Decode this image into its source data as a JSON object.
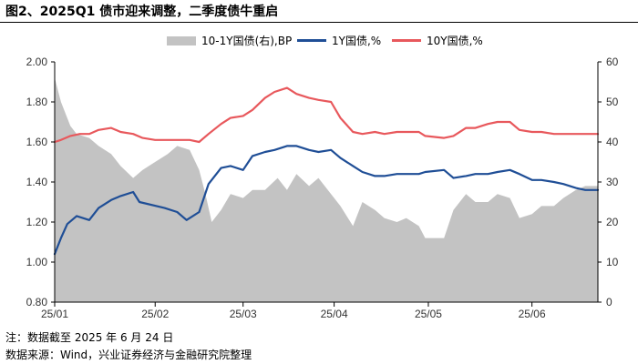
{
  "title": "图2、2025Q1 债市迎来调整，二季度债牛重启",
  "footer": {
    "note": "注：数据截至 2025 年 6 月 24 日",
    "source": "数据来源：Wind，兴业证券经济与金融研究院整理"
  },
  "chart_data": {
    "type": "line",
    "grid": false,
    "legend_position": "top",
    "x_tick_labels": [
      "25/01",
      "25/02",
      "25/03",
      "25/04",
      "25/05",
      "25/06"
    ],
    "x_tick_dates": [
      "2025-01-02",
      "2025-02-03",
      "2025-03-03",
      "2025-04-01",
      "2025-05-01",
      "2025-06-03"
    ],
    "x_range": [
      "2025-01-02",
      "2025-06-24"
    ],
    "y_left": {
      "range": [
        0.8,
        2.0
      ],
      "ticks": [
        "0.80",
        "1.00",
        "1.20",
        "1.40",
        "1.60",
        "1.80",
        "2.00"
      ]
    },
    "y_right": {
      "range": [
        0,
        60
      ],
      "ticks": [
        "0",
        "10",
        "20",
        "30",
        "40",
        "50",
        "60"
      ]
    },
    "series": [
      {
        "name": "10-1Y国债(右),BP",
        "axis": "right",
        "style": "area",
        "color": "#c3c3c3",
        "points": [
          [
            "2025-01-02",
            56
          ],
          [
            "2025-01-04",
            50
          ],
          [
            "2025-01-07",
            44
          ],
          [
            "2025-01-09",
            42
          ],
          [
            "2025-01-13",
            41
          ],
          [
            "2025-01-16",
            39
          ],
          [
            "2025-01-20",
            37
          ],
          [
            "2025-01-23",
            34
          ],
          [
            "2025-01-27",
            31
          ],
          [
            "2025-01-30",
            33
          ],
          [
            "2025-02-03",
            35
          ],
          [
            "2025-02-07",
            37
          ],
          [
            "2025-02-10",
            39
          ],
          [
            "2025-02-14",
            38
          ],
          [
            "2025-02-17",
            33
          ],
          [
            "2025-02-19",
            27
          ],
          [
            "2025-02-21",
            20
          ],
          [
            "2025-02-24",
            23
          ],
          [
            "2025-02-27",
            27
          ],
          [
            "2025-03-03",
            26
          ],
          [
            "2025-03-06",
            28
          ],
          [
            "2025-03-10",
            28
          ],
          [
            "2025-03-14",
            31
          ],
          [
            "2025-03-17",
            28
          ],
          [
            "2025-03-20",
            32
          ],
          [
            "2025-03-24",
            29
          ],
          [
            "2025-03-27",
            31
          ],
          [
            "2025-03-31",
            27
          ],
          [
            "2025-04-03",
            24
          ],
          [
            "2025-04-07",
            19
          ],
          [
            "2025-04-10",
            25
          ],
          [
            "2025-04-14",
            23
          ],
          [
            "2025-04-17",
            21
          ],
          [
            "2025-04-21",
            20
          ],
          [
            "2025-04-24",
            21
          ],
          [
            "2025-04-28",
            19
          ],
          [
            "2025-04-30",
            16
          ],
          [
            "2025-05-06",
            16
          ],
          [
            "2025-05-09",
            23
          ],
          [
            "2025-05-13",
            27
          ],
          [
            "2025-05-16",
            25
          ],
          [
            "2025-05-20",
            25
          ],
          [
            "2025-05-23",
            27
          ],
          [
            "2025-05-27",
            26
          ],
          [
            "2025-05-30",
            21
          ],
          [
            "2025-06-03",
            22
          ],
          [
            "2025-06-06",
            24
          ],
          [
            "2025-06-10",
            24
          ],
          [
            "2025-06-13",
            26
          ],
          [
            "2025-06-17",
            28
          ],
          [
            "2025-06-20",
            29
          ],
          [
            "2025-06-24",
            29
          ]
        ]
      },
      {
        "name": "1Y国债,%",
        "axis": "left",
        "style": "line",
        "color": "#1f4e96",
        "points": [
          [
            "2025-01-02",
            1.04
          ],
          [
            "2025-01-04",
            1.12
          ],
          [
            "2025-01-06",
            1.19
          ],
          [
            "2025-01-09",
            1.23
          ],
          [
            "2025-01-13",
            1.21
          ],
          [
            "2025-01-16",
            1.27
          ],
          [
            "2025-01-20",
            1.31
          ],
          [
            "2025-01-23",
            1.33
          ],
          [
            "2025-01-27",
            1.35
          ],
          [
            "2025-01-29",
            1.3
          ],
          [
            "2025-02-06",
            1.27
          ],
          [
            "2025-02-10",
            1.25
          ],
          [
            "2025-02-13",
            1.21
          ],
          [
            "2025-02-17",
            1.25
          ],
          [
            "2025-02-20",
            1.39
          ],
          [
            "2025-02-24",
            1.47
          ],
          [
            "2025-02-27",
            1.48
          ],
          [
            "2025-03-03",
            1.46
          ],
          [
            "2025-03-06",
            1.53
          ],
          [
            "2025-03-10",
            1.55
          ],
          [
            "2025-03-13",
            1.56
          ],
          [
            "2025-03-17",
            1.58
          ],
          [
            "2025-03-20",
            1.58
          ],
          [
            "2025-03-24",
            1.56
          ],
          [
            "2025-03-27",
            1.55
          ],
          [
            "2025-03-31",
            1.56
          ],
          [
            "2025-04-03",
            1.52
          ],
          [
            "2025-04-07",
            1.48
          ],
          [
            "2025-04-10",
            1.45
          ],
          [
            "2025-04-14",
            1.43
          ],
          [
            "2025-04-17",
            1.43
          ],
          [
            "2025-04-21",
            1.44
          ],
          [
            "2025-04-24",
            1.44
          ],
          [
            "2025-04-28",
            1.44
          ],
          [
            "2025-04-30",
            1.45
          ],
          [
            "2025-05-06",
            1.46
          ],
          [
            "2025-05-09",
            1.42
          ],
          [
            "2025-05-13",
            1.43
          ],
          [
            "2025-05-16",
            1.44
          ],
          [
            "2025-05-20",
            1.44
          ],
          [
            "2025-05-23",
            1.45
          ],
          [
            "2025-05-27",
            1.46
          ],
          [
            "2025-05-30",
            1.44
          ],
          [
            "2025-06-03",
            1.41
          ],
          [
            "2025-06-06",
            1.41
          ],
          [
            "2025-06-10",
            1.4
          ],
          [
            "2025-06-13",
            1.39
          ],
          [
            "2025-06-17",
            1.37
          ],
          [
            "2025-06-20",
            1.36
          ],
          [
            "2025-06-24",
            1.36
          ]
        ]
      },
      {
        "name": "10Y国债,%",
        "axis": "left",
        "style": "line",
        "color": "#e8585c",
        "points": [
          [
            "2025-01-02",
            1.6
          ],
          [
            "2025-01-04",
            1.61
          ],
          [
            "2025-01-07",
            1.63
          ],
          [
            "2025-01-10",
            1.64
          ],
          [
            "2025-01-13",
            1.64
          ],
          [
            "2025-01-16",
            1.66
          ],
          [
            "2025-01-20",
            1.67
          ],
          [
            "2025-01-23",
            1.65
          ],
          [
            "2025-01-27",
            1.64
          ],
          [
            "2025-01-30",
            1.62
          ],
          [
            "2025-02-03",
            1.61
          ],
          [
            "2025-02-07",
            1.61
          ],
          [
            "2025-02-10",
            1.61
          ],
          [
            "2025-02-14",
            1.61
          ],
          [
            "2025-02-17",
            1.6
          ],
          [
            "2025-02-20",
            1.64
          ],
          [
            "2025-02-24",
            1.69
          ],
          [
            "2025-02-27",
            1.72
          ],
          [
            "2025-03-03",
            1.73
          ],
          [
            "2025-03-06",
            1.76
          ],
          [
            "2025-03-10",
            1.82
          ],
          [
            "2025-03-13",
            1.85
          ],
          [
            "2025-03-17",
            1.87
          ],
          [
            "2025-03-20",
            1.84
          ],
          [
            "2025-03-24",
            1.82
          ],
          [
            "2025-03-27",
            1.81
          ],
          [
            "2025-03-31",
            1.8
          ],
          [
            "2025-04-03",
            1.72
          ],
          [
            "2025-04-07",
            1.65
          ],
          [
            "2025-04-10",
            1.64
          ],
          [
            "2025-04-14",
            1.65
          ],
          [
            "2025-04-17",
            1.64
          ],
          [
            "2025-04-21",
            1.65
          ],
          [
            "2025-04-24",
            1.65
          ],
          [
            "2025-04-28",
            1.65
          ],
          [
            "2025-04-30",
            1.63
          ],
          [
            "2025-05-06",
            1.62
          ],
          [
            "2025-05-09",
            1.63
          ],
          [
            "2025-05-13",
            1.67
          ],
          [
            "2025-05-16",
            1.67
          ],
          [
            "2025-05-20",
            1.69
          ],
          [
            "2025-05-23",
            1.7
          ],
          [
            "2025-05-27",
            1.7
          ],
          [
            "2025-05-30",
            1.66
          ],
          [
            "2025-06-03",
            1.65
          ],
          [
            "2025-06-06",
            1.65
          ],
          [
            "2025-06-10",
            1.64
          ],
          [
            "2025-06-13",
            1.64
          ],
          [
            "2025-06-17",
            1.64
          ],
          [
            "2025-06-20",
            1.64
          ],
          [
            "2025-06-24",
            1.64
          ]
        ]
      }
    ]
  }
}
